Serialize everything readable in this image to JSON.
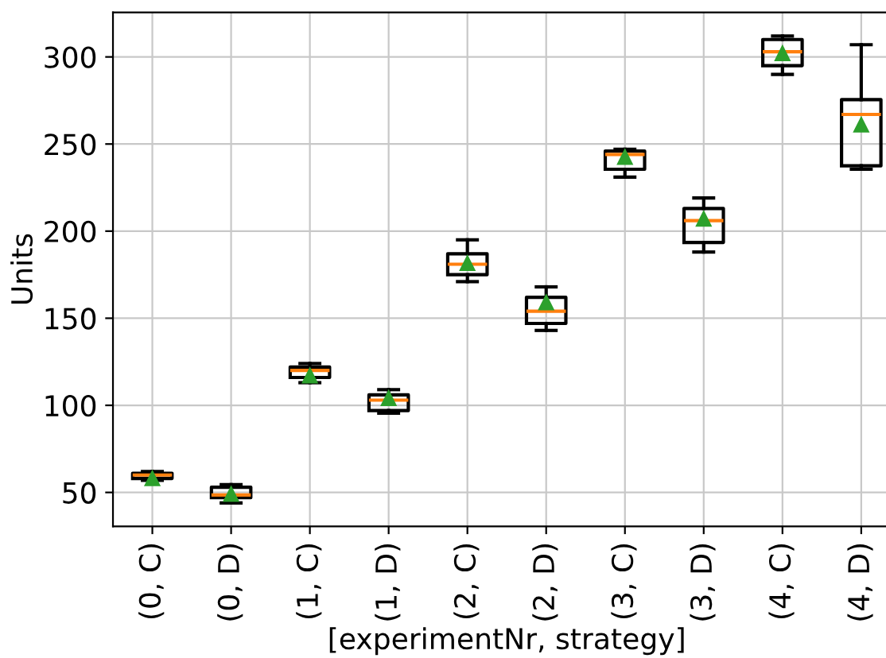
{
  "chart_data": {
    "type": "box",
    "xlabel": "[experimentNr, strategy]",
    "ylabel": "Units",
    "categories": [
      "(0, C)",
      "(0, D)",
      "(1, C)",
      "(1, D)",
      "(2, C)",
      "(2, D)",
      "(3, C)",
      "(3, D)",
      "(4, C)",
      "(4, D)"
    ],
    "boxes": [
      {
        "low": 57,
        "q1": 58,
        "median": 60,
        "q3": 61,
        "high": 62,
        "mean": 58
      },
      {
        "low": 44,
        "q1": 47,
        "median": 48.5,
        "q3": 53,
        "high": 54.5,
        "mean": 49
      },
      {
        "low": 113,
        "q1": 116,
        "median": 120,
        "q3": 122,
        "high": 124,
        "mean": 117
      },
      {
        "low": 95.5,
        "q1": 97,
        "median": 103,
        "q3": 106,
        "high": 109,
        "mean": 104
      },
      {
        "low": 171,
        "q1": 175,
        "median": 181,
        "q3": 187,
        "high": 195,
        "mean": 181.5
      },
      {
        "low": 143,
        "q1": 147,
        "median": 154,
        "q3": 162,
        "high": 168,
        "mean": 159
      },
      {
        "low": 231,
        "q1": 235.5,
        "median": 244,
        "q3": 246,
        "high": 247,
        "mean": 242.5
      },
      {
        "low": 188,
        "q1": 193.5,
        "median": 206,
        "q3": 213,
        "high": 219,
        "mean": 207
      },
      {
        "low": 290,
        "q1": 295,
        "median": 303,
        "q3": 310,
        "high": 312,
        "mean": 302
      },
      {
        "low": 235.5,
        "q1": 237.5,
        "median": 267,
        "q3": 275.5,
        "high": 307,
        "mean": 261
      }
    ],
    "ylim": [
      30.5,
      325.5
    ],
    "yticks": [
      50,
      100,
      150,
      200,
      250,
      300
    ],
    "grid": true,
    "marker": "triangle"
  }
}
